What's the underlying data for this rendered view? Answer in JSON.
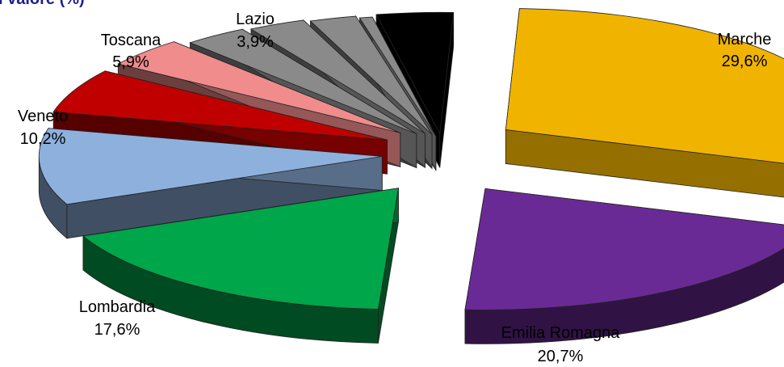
{
  "chart_data": {
    "type": "pie",
    "title": "I valore (%)",
    "slices": [
      {
        "label": "Marche",
        "value_label": "29,6%",
        "value": 29.6,
        "color": "#f0b400"
      },
      {
        "label": "Emilia Romagna",
        "value_label": "20,7%",
        "value": 20.7,
        "color": "#6a2a96"
      },
      {
        "label": "Lombardia",
        "value_label": "17,6%",
        "value": 17.6,
        "color": "#00a64a"
      },
      {
        "label": "Veneto",
        "value_label": "10,2%",
        "value": 10.2,
        "color": "#8eb0dc"
      },
      {
        "label": "Toscana",
        "value_label": "5,9%",
        "value": 5.9,
        "color": "#c00000"
      },
      {
        "label": "Lazio",
        "value_label": "3,9%",
        "value": 3.9,
        "color": "#f08c8c"
      },
      {
        "label": "",
        "value_label": "",
        "value": 3.0,
        "color": "#8a8a8a"
      },
      {
        "label": "",
        "value_label": "",
        "value": 2.7,
        "color": "#8a8a8a"
      },
      {
        "label": "",
        "value_label": "",
        "value": 2.2,
        "color": "#8a8a8a"
      },
      {
        "label": "",
        "value_label": "",
        "value": 0.6,
        "color": "#8a8a8a"
      },
      {
        "label": "",
        "value_label": "",
        "value": 3.6,
        "color": "#000000"
      }
    ]
  }
}
